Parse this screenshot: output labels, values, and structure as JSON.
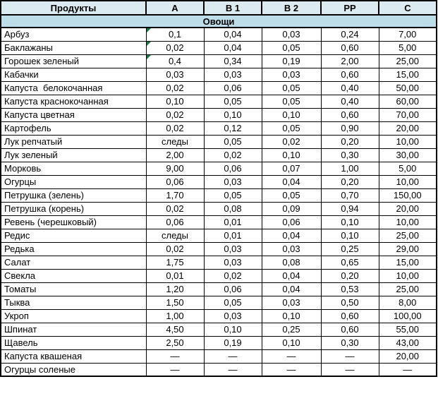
{
  "colors": {
    "header_bg": "#dcebf2",
    "section_bg": "#bddee9",
    "grid_border": "#000000",
    "flag_triangle": "#1e7145",
    "text": "#000000"
  },
  "table": {
    "columns": [
      "Продукты",
      "A",
      "B 1",
      "B 2",
      "PP",
      "C"
    ],
    "section_label": "Овощи",
    "rows": [
      {
        "name": "Арбуз",
        "values": [
          "0,1",
          "0,04",
          "0,03",
          "0,24",
          "7,00"
        ],
        "flag": true
      },
      {
        "name": "Баклажаны",
        "values": [
          "0,02",
          "0,04",
          "0,05",
          "0,60",
          "5,00"
        ],
        "flag": true
      },
      {
        "name": "Горошек зеленый",
        "values": [
          "0,4",
          "0,34",
          "0,19",
          "2,00",
          "25,00"
        ],
        "flag": true
      },
      {
        "name": "Кабачки",
        "values": [
          "0,03",
          "0,03",
          "0,03",
          "0,60",
          "15,00"
        ],
        "flag": false
      },
      {
        "name": "Капуста  белокочанная",
        "values": [
          "0,02",
          "0,06",
          "0,05",
          "0,40",
          "50,00"
        ],
        "flag": false
      },
      {
        "name": "Капуста краснокочанная",
        "values": [
          "0,10",
          "0,05",
          "0,05",
          "0,40",
          "60,00"
        ],
        "flag": false
      },
      {
        "name": "Капуста цветная",
        "values": [
          "0,02",
          "0,10",
          "0,10",
          "0,60",
          "70,00"
        ],
        "flag": false
      },
      {
        "name": "Картофель",
        "values": [
          "0,02",
          "0,12",
          "0,05",
          "0,90",
          "20,00"
        ],
        "flag": false
      },
      {
        "name": "Лук репчатый",
        "values": [
          "следы",
          "0,05",
          "0,02",
          "0,20",
          "10,00"
        ],
        "flag": false
      },
      {
        "name": "Лук зеленый",
        "values": [
          "2,00",
          "0,02",
          "0,10",
          "0,30",
          "30,00"
        ],
        "flag": false
      },
      {
        "name": "Морковь",
        "values": [
          "9,00",
          "0,06",
          "0,07",
          "1,00",
          "5,00"
        ],
        "flag": false
      },
      {
        "name": "Огурцы",
        "values": [
          "0,06",
          "0,03",
          "0,04",
          "0,20",
          "10,00"
        ],
        "flag": false
      },
      {
        "name": "Петрушка (зелень)",
        "values": [
          "1,70",
          "0,05",
          "0,05",
          "0,70",
          "150,00"
        ],
        "flag": false
      },
      {
        "name": "Петрушка (корень)",
        "values": [
          "0,02",
          "0,08",
          "0,09",
          "0,94",
          "20,00"
        ],
        "flag": false
      },
      {
        "name": "Ревень (черешковый)",
        "values": [
          "0,06",
          "0,01",
          "0,06",
          "0,10",
          "10,00"
        ],
        "flag": false
      },
      {
        "name": "Редис",
        "values": [
          "следы",
          "0,01",
          "0,04",
          "0,10",
          "25,00"
        ],
        "flag": false
      },
      {
        "name": "Редька",
        "values": [
          "0,02",
          "0,03",
          "0,03",
          "0,25",
          "29,00"
        ],
        "flag": false
      },
      {
        "name": "Салат",
        "values": [
          "1,75",
          "0,03",
          "0,08",
          "0,65",
          "15,00"
        ],
        "flag": false
      },
      {
        "name": "Свекла",
        "values": [
          "0,01",
          "0,02",
          "0,04",
          "0,20",
          "10,00"
        ],
        "flag": false
      },
      {
        "name": "Томаты",
        "values": [
          "1,20",
          "0,06",
          "0,04",
          "0,53",
          "25,00"
        ],
        "flag": false
      },
      {
        "name": "Тыква",
        "values": [
          "1,50",
          "0,05",
          "0,03",
          "0,50",
          "8,00"
        ],
        "flag": false
      },
      {
        "name": "Укроп",
        "values": [
          "1,00",
          "0,03",
          "0,10",
          "0,60",
          "100,00"
        ],
        "flag": false
      },
      {
        "name": "Шпинат",
        "values": [
          "4,50",
          "0,10",
          "0,25",
          "0,60",
          "55,00"
        ],
        "flag": false
      },
      {
        "name": "Щавель",
        "values": [
          "2,50",
          "0,19",
          "0,10",
          "0,30",
          "43,00"
        ],
        "flag": false
      },
      {
        "name": "Капуста квашеная",
        "values": [
          "—",
          "—",
          "—",
          "—",
          "20,00"
        ],
        "flag": false
      },
      {
        "name": "Огурцы соленые",
        "values": [
          "—",
          "—",
          "—",
          "—",
          "—"
        ],
        "flag": false
      }
    ]
  }
}
